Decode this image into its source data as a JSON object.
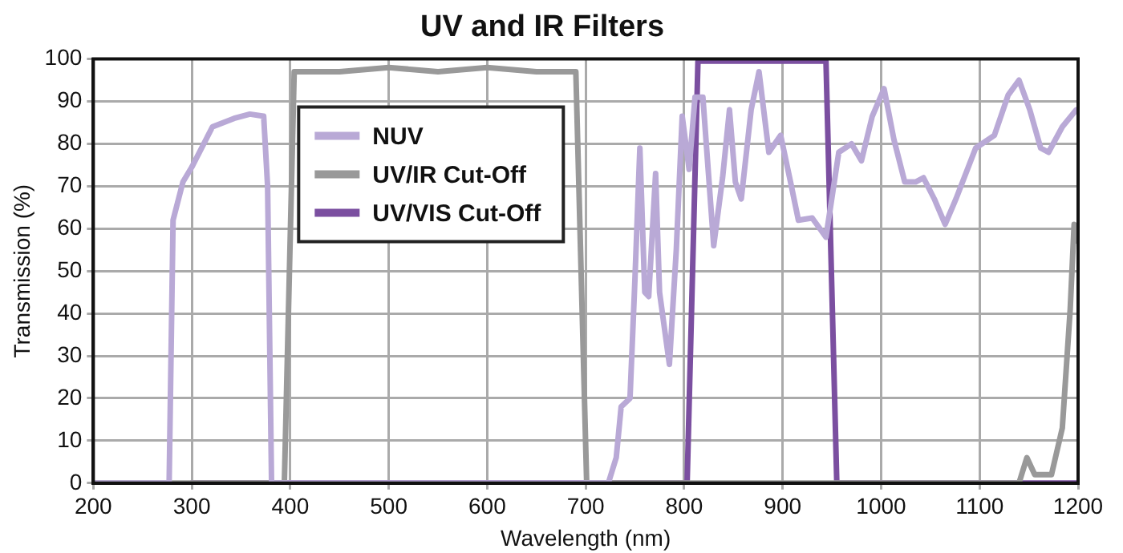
{
  "chart_data": {
    "type": "line",
    "title": "UV and IR Filters",
    "xlabel": "Wavelength (nm)",
    "ylabel": "Transmission (%)",
    "xlim": [
      200,
      1200
    ],
    "ylim": [
      0,
      100
    ],
    "xticks": [
      200,
      300,
      400,
      500,
      600,
      700,
      800,
      900,
      1000,
      1100,
      1200
    ],
    "yticks": [
      0,
      10,
      20,
      30,
      40,
      50,
      60,
      70,
      80,
      90,
      100
    ],
    "grid": true,
    "legend": "top left",
    "marker": "none",
    "line_style": "solid",
    "series": [
      {
        "name": "NUV",
        "color": "#b9a9d6",
        "x": [
          200,
          277,
          281,
          291,
          300,
          321,
          343,
          359,
          373,
          377,
          381,
          723,
          731,
          736,
          745,
          750,
          755,
          760,
          764,
          771,
          775,
          785,
          792,
          798,
          805,
          811,
          819,
          830,
          839,
          846,
          852,
          858,
          868,
          876,
          886,
          898,
          908,
          916,
          930,
          944,
          957,
          970,
          980,
          991,
          1003,
          1013,
          1024,
          1035,
          1043,
          1054,
          1065,
          1076,
          1096,
          1115,
          1129,
          1140,
          1151,
          1162,
          1170,
          1184,
          1198
        ],
        "values": [
          0,
          0,
          62,
          71,
          74.5,
          84,
          86,
          87,
          86.5,
          70,
          0,
          0,
          6,
          18,
          20,
          48,
          79,
          45,
          44,
          73,
          45,
          28,
          55,
          86.5,
          74,
          91,
          91,
          56,
          72,
          88,
          71,
          67,
          88,
          97,
          78,
          82,
          71,
          62,
          62.5,
          58,
          78,
          80,
          76,
          86.5,
          93,
          81,
          71,
          71,
          72,
          67,
          61,
          67,
          79,
          82,
          91.5,
          95,
          88,
          79,
          78,
          84,
          88
        ]
      },
      {
        "name": "UV/IR Cut-Off",
        "color": "#999999",
        "x": [
          200,
          394,
          404,
          450,
          500,
          550,
          600,
          650,
          690,
          701,
          1140,
          1148,
          1156,
          1173,
          1184,
          1192,
          1196,
          1200
        ],
        "values": [
          0,
          0,
          97,
          97,
          98,
          97,
          98,
          97,
          97,
          0,
          0,
          6,
          2,
          2,
          13,
          41,
          61,
          57
        ]
      },
      {
        "name": "UV/VIS Cut-Off",
        "color": "#7b4fa0",
        "x": [
          300,
          803,
          814,
          850,
          900,
          944,
          955,
          1200
        ],
        "values": [
          0,
          0,
          99.5,
          99.5,
          99.5,
          99.5,
          0,
          0
        ]
      }
    ]
  }
}
